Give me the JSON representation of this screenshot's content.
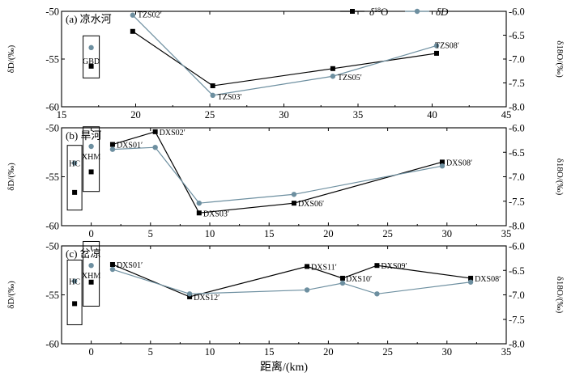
{
  "chart_data": [
    {
      "type": "line",
      "title": "(a) 凉水河",
      "ylabel_left": "δD/(‰)",
      "ylabel_right": "δ18O/(‰)",
      "xlim": [
        15,
        45
      ],
      "ylim_left": [
        -60,
        -50
      ],
      "ylim_right": [
        -8.0,
        -6.0
      ],
      "x_ticks": [
        "15",
        "20",
        "25",
        "30",
        "35",
        "40",
        "45"
      ],
      "y_left_ticks": [
        "-60",
        "-55",
        "-50"
      ],
      "y_right_ticks": [
        "-8.0",
        "-7.5",
        "-7.0",
        "-6.5",
        "-6.0"
      ],
      "legend": {
        "o18_label": "δ18O",
        "dd_label": "δD",
        "placement": "top-right"
      },
      "series": [
        {
          "key": "o18",
          "axis": "right",
          "points": [
            {
              "x": 19.8,
              "y": -6.42
            },
            {
              "x": 25.2,
              "y": -7.56
            },
            {
              "x": 33.3,
              "y": -7.2
            },
            {
              "x": 40.3,
              "y": -6.88
            }
          ]
        },
        {
          "key": "dd",
          "axis": "left",
          "points": [
            {
              "x": 19.8,
              "y": -50.4,
              "label": "TZS02′"
            },
            {
              "x": 25.2,
              "y": -58.8,
              "label": "TZS03′"
            },
            {
              "x": 33.3,
              "y": -56.8,
              "label": "TZS05′"
            },
            {
              "x": 40.3,
              "y": -53.6,
              "label": "TZS08′"
            }
          ]
        }
      ],
      "isolated": [
        {
          "label": "GBD",
          "x": 17.0,
          "dd": -53.8,
          "o18": -7.15
        }
      ]
    },
    {
      "type": "line",
      "title": "(b) 旱河",
      "ylabel_left": "δD/(‰)",
      "ylabel_right": "δ18O/(‰)",
      "xlim": [
        -2.5,
        35
      ],
      "ylim_left": [
        -60,
        -50
      ],
      "ylim_right": [
        -8.0,
        -6.0
      ],
      "x_ticks": [
        "0",
        "5",
        "10",
        "15",
        "20",
        "25",
        "30",
        "35"
      ],
      "y_left_ticks": [
        "-60",
        "-55",
        "-50"
      ],
      "y_right_ticks": [
        "-8.0",
        "-7.5",
        "-7.0",
        "-6.5",
        "-6.0"
      ],
      "series": [
        {
          "key": "o18",
          "axis": "right",
          "points": [
            {
              "x": 1.8,
              "y": -6.34,
              "label": "DXS01′"
            },
            {
              "x": 5.4,
              "y": -6.08,
              "label": "DXS02′"
            },
            {
              "x": 9.1,
              "y": -7.74,
              "label": "DXS03′"
            },
            {
              "x": 17.1,
              "y": -7.54,
              "label": "DXS06′"
            },
            {
              "x": 29.6,
              "y": -6.7,
              "label": "DXS08′"
            }
          ]
        },
        {
          "key": "dd",
          "axis": "left",
          "points": [
            {
              "x": 1.8,
              "y": -52.2
            },
            {
              "x": 5.4,
              "y": -52.0
            },
            {
              "x": 9.1,
              "y": -57.7
            },
            {
              "x": 17.1,
              "y": -56.8
            },
            {
              "x": 29.6,
              "y": -53.9
            }
          ]
        }
      ],
      "isolated": [
        {
          "label": "HC",
          "x": -1.4,
          "dd": -53.6,
          "o18": -7.32
        },
        {
          "label": "XHM",
          "x": 0.0,
          "dd": -51.9,
          "o18": -6.9
        }
      ]
    },
    {
      "type": "line",
      "title": "(c) 岔凉",
      "ylabel_left": "δD/(‰)",
      "ylabel_right": "δ18O/(‰)",
      "xlabel": "距离/(km)",
      "xlim": [
        -2.5,
        35
      ],
      "ylim_left": [
        -60,
        -50
      ],
      "ylim_right": [
        -8.0,
        -6.0
      ],
      "x_ticks": [
        "0",
        "5",
        "10",
        "15",
        "20",
        "25",
        "30",
        "35"
      ],
      "y_left_ticks": [
        "-60",
        "-55",
        "-50"
      ],
      "y_right_ticks": [
        "-8.0",
        "-7.5",
        "-7.0",
        "-6.5",
        "-6.0"
      ],
      "series": [
        {
          "key": "o18",
          "axis": "right",
          "points": [
            {
              "x": 1.8,
              "y": -6.38,
              "label": "DXS01′"
            },
            {
              "x": 8.3,
              "y": -7.04,
              "label": "DXS12′"
            },
            {
              "x": 18.2,
              "y": -6.42,
              "label": "DXS11′"
            },
            {
              "x": 21.2,
              "y": -6.66,
              "label": "DXS10′"
            },
            {
              "x": 24.1,
              "y": -6.4,
              "label": "DXS09′"
            },
            {
              "x": 32.0,
              "y": -6.66,
              "label": "DXS08′"
            }
          ]
        },
        {
          "key": "dd",
          "axis": "left",
          "points": [
            {
              "x": 1.8,
              "y": -52.4
            },
            {
              "x": 8.3,
              "y": -54.9
            },
            {
              "x": 18.2,
              "y": -54.5
            },
            {
              "x": 21.2,
              "y": -53.8
            },
            {
              "x": 24.1,
              "y": -54.9
            },
            {
              "x": 32.0,
              "y": -53.7
            }
          ]
        }
      ],
      "isolated": [
        {
          "label": "HC",
          "x": -1.4,
          "dd": -53.6,
          "o18": -7.18
        },
        {
          "label": "XHM",
          "x": 0.0,
          "dd": -52.0,
          "o18": -6.74
        }
      ]
    }
  ],
  "colors": {
    "o18": "#000000",
    "dd": "#6d8fa0"
  }
}
